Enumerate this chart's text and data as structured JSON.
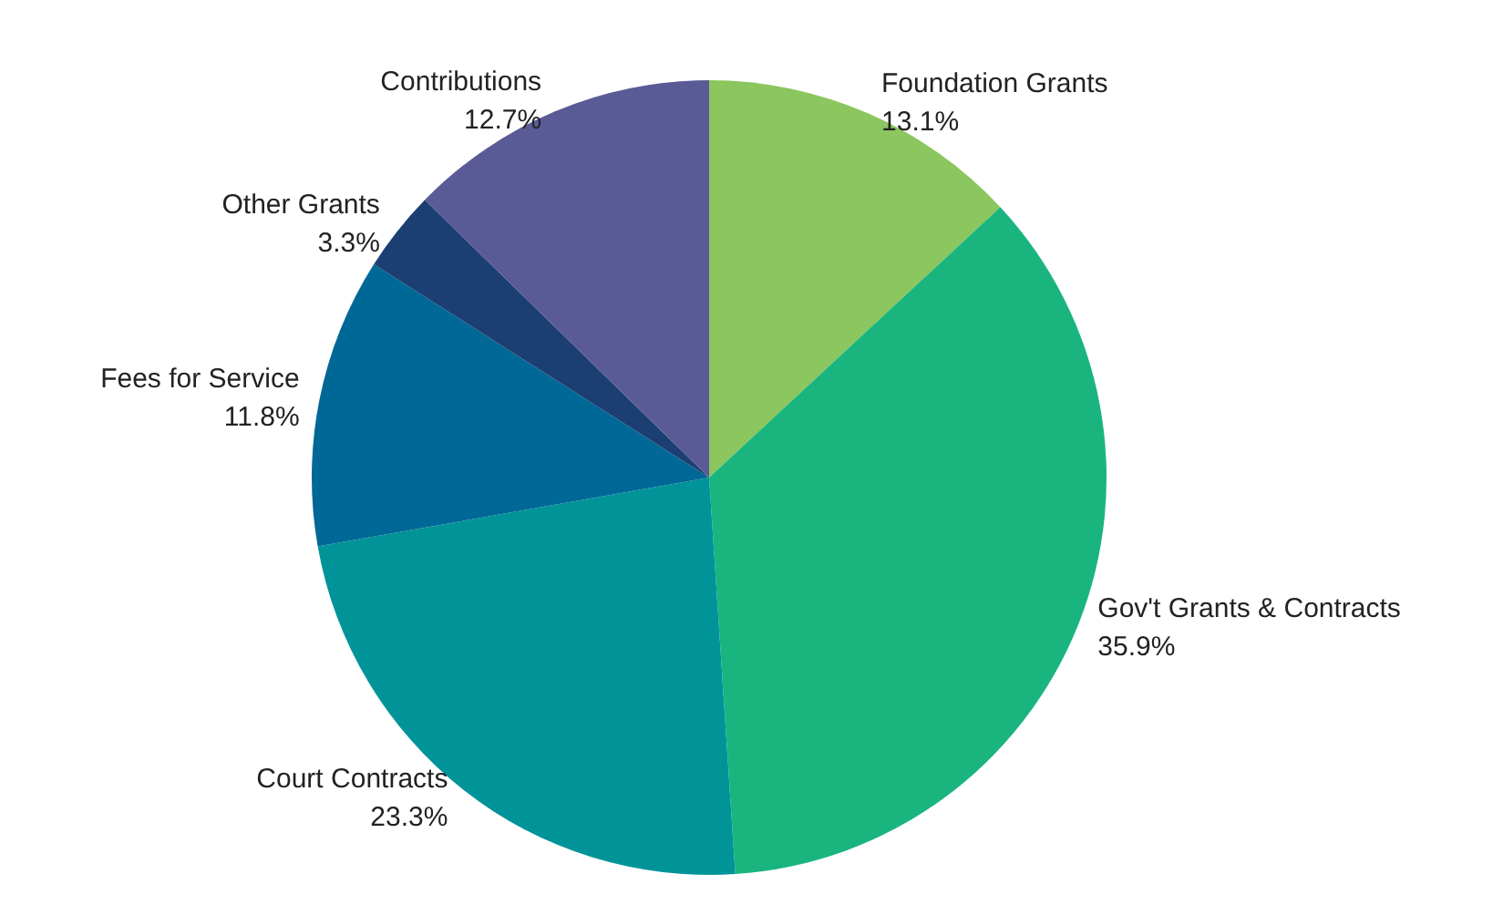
{
  "chart_data": {
    "type": "pie",
    "categories": [
      "Foundation Grants",
      "Gov't Grants & Contracts",
      "Court Contracts",
      "Fees for Service",
      "Other Grants",
      "Contributions"
    ],
    "values": [
      13.1,
      35.9,
      23.3,
      11.8,
      3.3,
      12.7
    ],
    "value_labels": [
      "13.1%",
      "35.9%",
      "23.3%",
      "11.8%",
      "3.3%",
      "12.7%"
    ],
    "colors": [
      "#8bc65e",
      "#1ab57f",
      "#009499",
      "#006896",
      "#1b3f73",
      "#5a5b96"
    ],
    "legend": false
  }
}
